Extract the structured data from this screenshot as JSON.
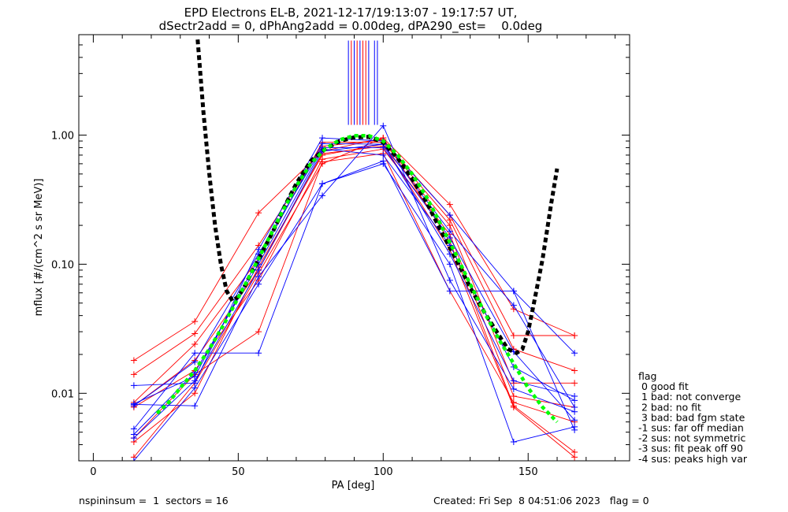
{
  "chart_data": {
    "type": "line",
    "title_lines": [
      "EPD Electrons EL-B, 2021-12-17/19:13:07 - 19:17:57 UT,",
      "dSectr2add = 0, dPhAng2add = 0.00deg, dPA290_est=    0.0deg"
    ],
    "xlabel": "PA [deg]",
    "ylabel": "mflux [#/(cm^2 s sr MeV)]",
    "xlim": [
      -5,
      185
    ],
    "ylim": [
      0.003,
      6.0
    ],
    "yscale": "log",
    "x_ticks": [
      0,
      50,
      100,
      150
    ],
    "x_tick_labels": [
      "0",
      "50",
      "100",
      "150"
    ],
    "y_ticks": [
      0.01,
      0.1,
      1.0
    ],
    "y_tick_labels": [
      "0.01",
      "0.10",
      "1.00"
    ],
    "colors": {
      "red": "#ff0000",
      "blue": "#0000ff",
      "black": "#000000",
      "green": "#00ff00"
    },
    "pa_bins": [
      14,
      35,
      57,
      79,
      100,
      123,
      145,
      166
    ],
    "series": [
      {
        "color": "#ff0000",
        "values": [
          0.018,
          0.036,
          0.25,
          0.75,
          0.95,
          0.29,
          0.045,
          0.028
        ]
      },
      {
        "color": "#ff0000",
        "values": [
          0.014,
          0.029,
          0.14,
          0.82,
          0.92,
          0.24,
          0.028,
          0.028
        ]
      },
      {
        "color": "#ff0000",
        "values": [
          0.0085,
          0.024,
          0.11,
          0.88,
          0.88,
          0.22,
          0.022,
          0.015
        ]
      },
      {
        "color": "#ff0000",
        "values": [
          0.008,
          0.018,
          0.09,
          0.72,
          0.82,
          0.2,
          0.012,
          0.012
        ]
      },
      {
        "color": "#ff0000",
        "values": [
          0.0078,
          0.015,
          0.075,
          0.65,
          0.78,
          0.17,
          0.0095,
          0.0078
        ]
      },
      {
        "color": "#ff0000",
        "values": [
          0.0045,
          0.014,
          0.03,
          0.62,
          0.72,
          0.062,
          0.0085,
          0.006
        ]
      },
      {
        "color": "#ff0000",
        "values": [
          0.0032,
          0.012,
          0.085,
          0.6,
          0.95,
          0.15,
          0.008,
          0.0035
        ]
      },
      {
        "color": "#ff0000",
        "values": [
          0.0042,
          0.01,
          0.095,
          0.7,
          0.85,
          0.13,
          0.0078,
          0.0032
        ]
      },
      {
        "color": "#0000ff",
        "values": [
          0.0115,
          0.012,
          0.13,
          0.95,
          0.9,
          0.24,
          0.062,
          0.0205
        ]
      },
      {
        "color": "#0000ff",
        "values": [
          0.0053,
          0.0205,
          0.0205,
          0.42,
          0.63,
          0.062,
          0.062,
          0.0052
        ]
      },
      {
        "color": "#0000ff",
        "values": [
          0.0083,
          0.0135,
          0.11,
          0.86,
          0.85,
          0.18,
          0.048,
          0.0078
        ]
      },
      {
        "color": "#0000ff",
        "values": [
          0.008,
          0.0175,
          0.12,
          0.8,
          0.8,
          0.16,
          0.021,
          0.0062
        ]
      },
      {
        "color": "#0000ff",
        "values": [
          0.0048,
          0.0145,
          0.1,
          0.78,
          0.7,
          0.14,
          0.016,
          0.0088
        ]
      },
      {
        "color": "#0000ff",
        "values": [
          0.0045,
          0.0125,
          0.09,
          0.75,
          0.85,
          0.12,
          0.0125,
          0.0095
        ]
      },
      {
        "color": "#0000ff",
        "values": [
          0.0082,
          0.008,
          0.08,
          0.34,
          1.18,
          0.075,
          0.0108,
          0.0072
        ]
      },
      {
        "color": "#0000ff",
        "values": [
          0.003,
          0.011,
          0.07,
          0.42,
          0.6,
          0.1,
          0.0042,
          0.0055
        ]
      }
    ],
    "fit_curve_black": {
      "color": "#000000",
      "x": [
        36,
        38,
        40,
        42,
        44,
        46,
        48,
        50,
        52,
        55,
        58,
        62,
        66,
        70,
        75,
        80,
        85,
        90,
        95,
        100,
        105,
        110,
        115,
        120,
        125,
        130,
        135,
        140,
        143,
        146,
        148,
        150,
        152,
        155,
        158,
        160
      ],
      "y": [
        5.5,
        1.5,
        0.5,
        0.2,
        0.1,
        0.062,
        0.052,
        0.056,
        0.066,
        0.09,
        0.12,
        0.18,
        0.28,
        0.42,
        0.63,
        0.78,
        0.9,
        0.96,
        0.97,
        0.88,
        0.66,
        0.46,
        0.3,
        0.18,
        0.11,
        0.066,
        0.042,
        0.028,
        0.022,
        0.0205,
        0.022,
        0.03,
        0.05,
        0.11,
        0.3,
        0.55
      ]
    },
    "fit_curve_green": {
      "color": "#00ff00",
      "x": [
        22,
        26,
        30,
        35,
        40,
        45,
        50,
        55,
        60,
        65,
        70,
        75,
        80,
        85,
        90,
        95,
        100,
        105,
        110,
        115,
        120,
        125,
        130,
        135,
        140,
        145,
        150,
        155,
        160
      ],
      "y": [
        0.007,
        0.0085,
        0.011,
        0.015,
        0.022,
        0.034,
        0.055,
        0.09,
        0.15,
        0.25,
        0.4,
        0.6,
        0.78,
        0.92,
        0.99,
        0.99,
        0.9,
        0.7,
        0.5,
        0.33,
        0.2,
        0.12,
        0.07,
        0.042,
        0.026,
        0.017,
        0.011,
        0.0078,
        0.006
      ]
    },
    "top_marks": [
      {
        "x": 88,
        "color": "#0000ff"
      },
      {
        "x": 89,
        "color": "#ff0000"
      },
      {
        "x": 90,
        "color": "#0000ff"
      },
      {
        "x": 91,
        "color": "#ff0000"
      },
      {
        "x": 92,
        "color": "#0000ff"
      },
      {
        "x": 93,
        "color": "#ff0000"
      },
      {
        "x": 94,
        "color": "#ff0000"
      },
      {
        "x": 95,
        "color": "#0000ff"
      },
      {
        "x": 97,
        "color": "#0000ff"
      },
      {
        "x": 98,
        "color": "#0000ff"
      }
    ],
    "legend": {
      "placement": "right",
      "items": [
        "flag",
        " 0 good fit",
        " 1 bad: not converge",
        " 2 bad: no fit",
        " 3 bad: bad fgm state",
        "-1 sus: far off median",
        "-2 sus: not symmetric",
        "-3 sus: fit peak off 90",
        "-4 sus: peaks high var"
      ]
    }
  },
  "footer": {
    "left": "nspininsum =  1  sectors = 16",
    "right": "Created: Fri Sep  8 04:51:06 2023   flag = 0"
  }
}
